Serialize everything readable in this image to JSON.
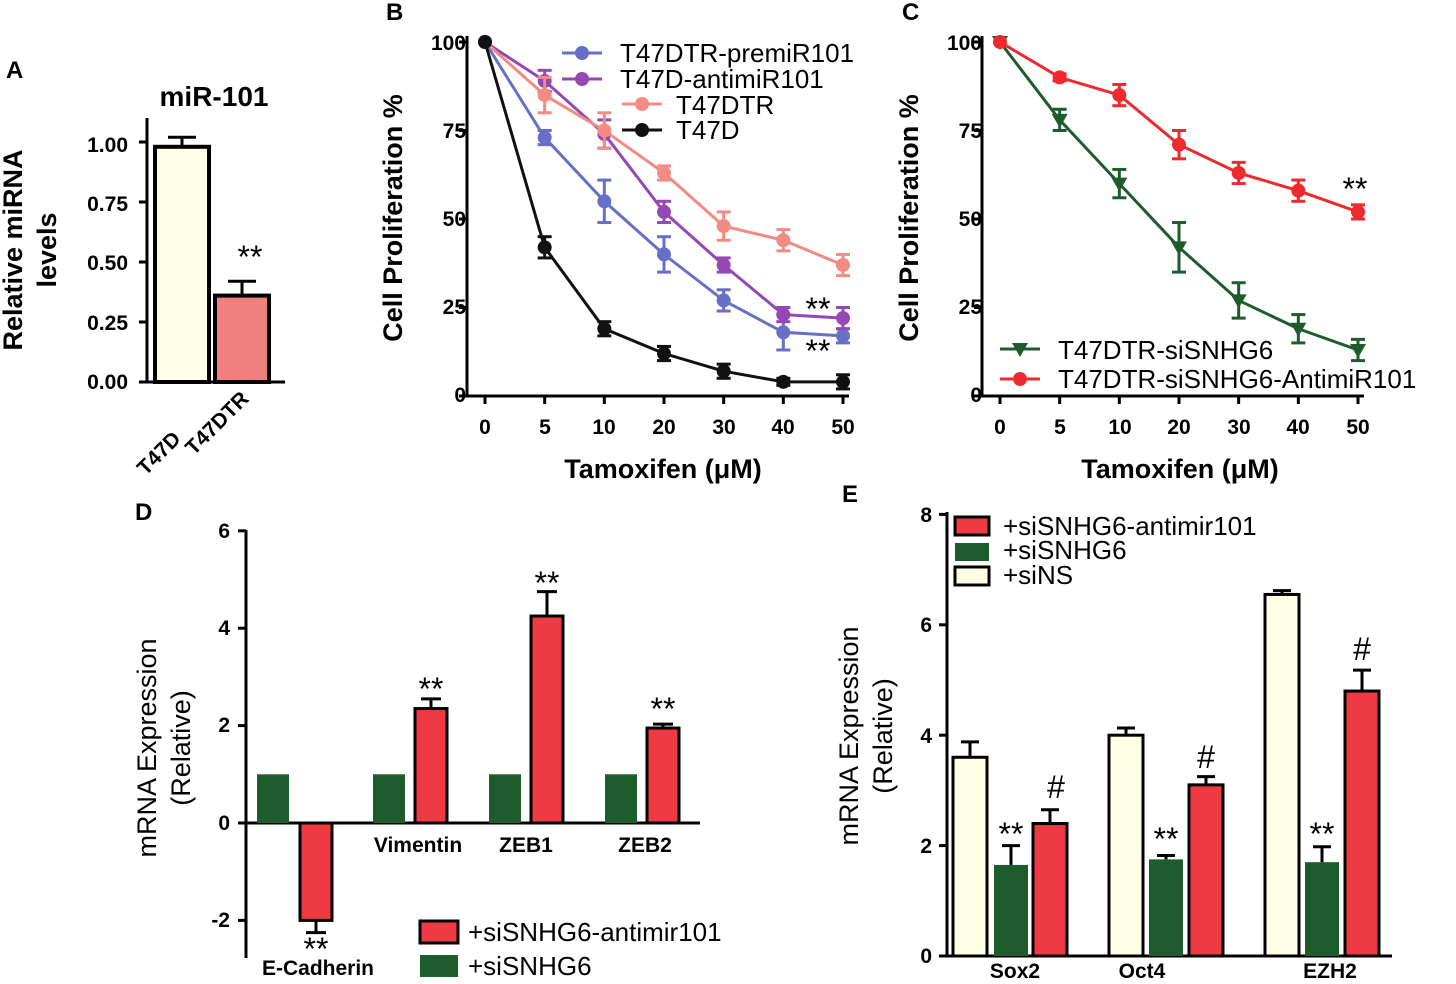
{
  "colors": {
    "cream": "#ffffe6",
    "salmon": "#f08080",
    "red": "#ee3a42",
    "green": "#1e5c2e",
    "blue": "#6670c6",
    "purple": "#9448b4",
    "pink": "#f28b84",
    "black": "#111111",
    "darkgreen": "#1e5c2e",
    "brightred": "#ee2a2e"
  },
  "chart_data": [
    {
      "panel": "A",
      "type": "bar",
      "title": "miR-101",
      "ylabel_lines": [
        "Relative miRNA",
        "levels"
      ],
      "categories": [
        "T47D",
        "T47DTR"
      ],
      "values": [
        0.98,
        0.36
      ],
      "errors": [
        0.04,
        0.06
      ],
      "annotations": [
        "",
        "**"
      ],
      "ylim": [
        0,
        1.1
      ],
      "yticks": [
        "0.00",
        "0.25",
        "0.50",
        "0.75",
        "1.00"
      ]
    },
    {
      "panel": "B",
      "type": "line",
      "xlabel": "Tamoxifen (μM)",
      "ylabel": "Cell Proliferation %",
      "x": [
        0,
        5,
        10,
        20,
        30,
        40,
        50
      ],
      "xticks": [
        "0",
        "5",
        "10",
        "20",
        "30",
        "40",
        "50"
      ],
      "yticks": [
        "0",
        "25",
        "50",
        "75",
        "100"
      ],
      "ylim": [
        0,
        100
      ],
      "series": [
        {
          "name": "T47DTR-premiR101",
          "values": [
            100,
            73,
            55,
            40,
            27,
            18,
            17
          ],
          "errors": [
            0,
            2,
            6,
            5,
            3,
            5,
            2
          ]
        },
        {
          "name": "T47D-antimiR101",
          "values": [
            100,
            89,
            74,
            52,
            37,
            23,
            22
          ],
          "errors": [
            0,
            3,
            4,
            3,
            2,
            2,
            3
          ]
        },
        {
          "name": "T47DTR",
          "values": [
            100,
            85,
            75,
            63,
            48,
            44,
            37
          ],
          "errors": [
            0,
            5,
            5,
            2,
            4,
            3,
            3
          ]
        },
        {
          "name": "T47D",
          "values": [
            100,
            42,
            19,
            12,
            7,
            4,
            4
          ],
          "errors": [
            0,
            3,
            2,
            2,
            2,
            1,
            2
          ]
        }
      ],
      "annotations": [
        "**",
        "**"
      ]
    },
    {
      "panel": "C",
      "type": "line",
      "xlabel": "Tamoxifen (μM)",
      "ylabel": "Cell Proliferation %",
      "x": [
        0,
        5,
        10,
        20,
        30,
        40,
        50
      ],
      "xticks": [
        "0",
        "5",
        "10",
        "20",
        "30",
        "40",
        "50"
      ],
      "yticks": [
        "0",
        "25",
        "50",
        "75",
        "100"
      ],
      "ylim": [
        0,
        100
      ],
      "series": [
        {
          "name": "T47DTR-siSNHG6",
          "values": [
            100,
            78,
            60,
            42,
            27,
            19,
            13
          ],
          "errors": [
            0,
            3,
            4,
            7,
            5,
            4,
            3
          ]
        },
        {
          "name": "T47DTR-siSNHG6-AntimiR101",
          "values": [
            100,
            90,
            85,
            71,
            63,
            58,
            52
          ],
          "errors": [
            0,
            1,
            3,
            4,
            3,
            3,
            2
          ]
        }
      ],
      "annotations": [
        "**"
      ]
    },
    {
      "panel": "D",
      "type": "bar",
      "ylabel_lines": [
        "mRNA Expression",
        "(Relative)"
      ],
      "categories": [
        "E-Cadherin",
        "Vimentin",
        "ZEB1",
        "ZEB2"
      ],
      "yticks": [
        "-2",
        "0",
        "2",
        "4",
        "6"
      ],
      "ylim": [
        -2.5,
        6
      ],
      "series": [
        {
          "name": "+siSNHG6",
          "values": [
            1.0,
            1.0,
            1.0,
            1.0
          ],
          "errors": [
            0.02,
            0.02,
            0.02,
            0.02
          ]
        },
        {
          "name": "+siSNHG6-antimir101",
          "values": [
            -2.0,
            2.35,
            4.25,
            1.95
          ],
          "errors": [
            0.25,
            0.2,
            0.5,
            0.08
          ]
        }
      ],
      "annotations": [
        "**",
        "**",
        "**",
        "**"
      ],
      "legend": [
        "+siSNHG6-antimir101",
        "+siSNHG6"
      ]
    },
    {
      "panel": "E",
      "type": "bar",
      "ylabel_lines": [
        "mRNA Expression",
        "(Relative)"
      ],
      "categories": [
        "Sox2",
        "Oct4",
        "EZH2"
      ],
      "yticks": [
        "0",
        "2",
        "4",
        "6",
        "8"
      ],
      "ylim": [
        0,
        8
      ],
      "series": [
        {
          "name": "+siNS",
          "values": [
            3.6,
            4.0,
            6.55
          ],
          "errors": [
            0.28,
            0.13,
            0.07
          ]
        },
        {
          "name": "+siSNHG6",
          "values": [
            1.65,
            1.75,
            1.7
          ],
          "errors": [
            0.35,
            0.07,
            0.28
          ]
        },
        {
          "name": "+siSNHG6-antimir101",
          "values": [
            2.4,
            3.1,
            4.8
          ],
          "errors": [
            0.25,
            0.15,
            0.38
          ]
        }
      ],
      "annotations": [
        "**",
        "#",
        "**",
        "#",
        "**",
        "#"
      ],
      "legend": [
        "+siSNHG6-antimir101",
        "+siSNHG6",
        "+siNS"
      ]
    }
  ]
}
